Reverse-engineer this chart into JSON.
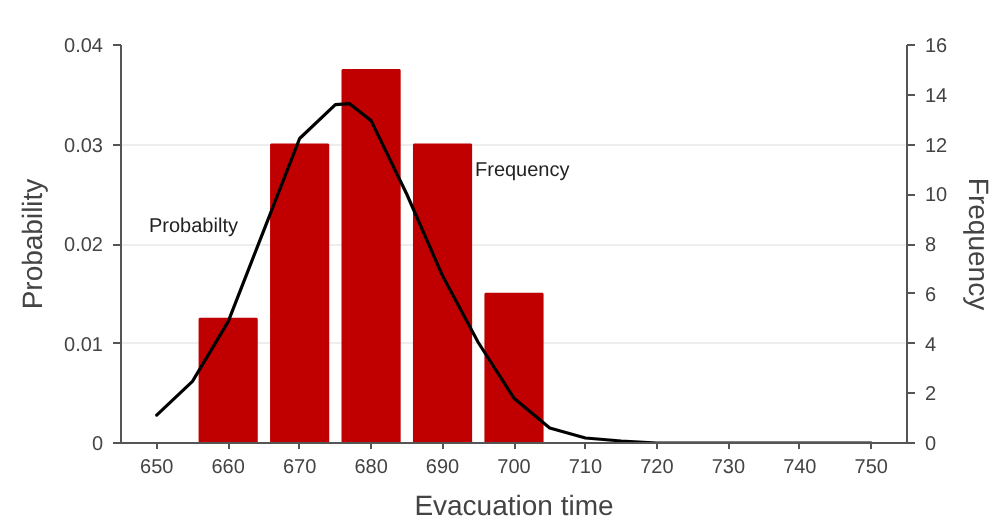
{
  "chart_data": {
    "type": "bar",
    "xlabel": "Evacuation time",
    "ylabel": "Probability",
    "y2label": "Frequency",
    "xlim": [
      645,
      755
    ],
    "xticks": [
      650,
      660,
      670,
      680,
      690,
      700,
      710,
      720,
      730,
      740,
      750
    ],
    "ylim": [
      0,
      0.04
    ],
    "yticks": [
      0,
      0.01,
      0.02,
      0.03,
      0.04
    ],
    "y2lim": [
      0,
      16
    ],
    "y2ticks": [
      0,
      2,
      4,
      6,
      8,
      10,
      12,
      14,
      16
    ],
    "grid": "y",
    "series": [
      {
        "axis": "y2",
        "color": "#c00000",
        "x": [
          660,
          670,
          680,
          690,
          700
        ],
        "values": [
          5,
          12,
          15,
          12,
          6
        ]
      },
      {
        "type": "line",
        "axis": "y",
        "color": "#000000",
        "x": [
          650,
          655,
          660,
          665,
          670,
          675,
          677,
          680,
          685,
          690,
          695,
          700,
          705,
          710,
          715,
          720,
          730,
          740,
          750
        ],
        "values": [
          0.0028,
          0.0062,
          0.0122,
          0.0214,
          0.0306,
          0.034,
          0.0341,
          0.0324,
          0.025,
          0.0168,
          0.0101,
          0.0045,
          0.0015,
          0.0005,
          0.0002,
          0,
          0,
          0,
          0
        ]
      }
    ],
    "annotations": [
      "Probabilty",
      "Frequency"
    ]
  }
}
